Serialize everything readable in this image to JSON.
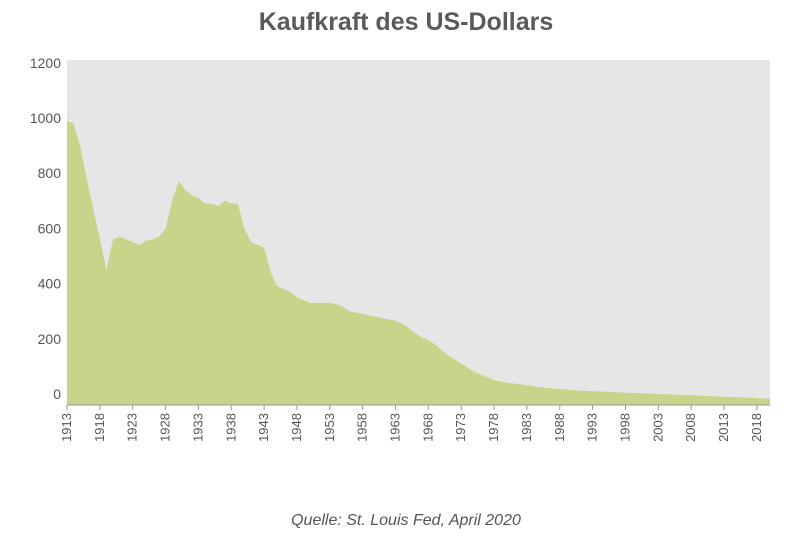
{
  "title": "Kaufkraft des US-Dollars",
  "source": "Quelle: St. Louis Fed, April 2020",
  "chart_data": {
    "type": "area",
    "title": "Kaufkraft des US-Dollars",
    "xlabel": "",
    "ylabel": "",
    "xlim": [
      1913,
      2020
    ],
    "ylim": [
      -40,
      1210
    ],
    "y_ticks": [
      0,
      200,
      400,
      600,
      800,
      1000,
      1200
    ],
    "x_ticks": [
      "1913",
      "1918",
      "1923",
      "1928",
      "1933",
      "1938",
      "1943",
      "1948",
      "1953",
      "1958",
      "1963",
      "1968",
      "1973",
      "1978",
      "1983",
      "1988",
      "1993",
      "1998",
      "2003",
      "2008",
      "2013",
      "2018"
    ],
    "grid": false,
    "fill_color": "#c8d48a",
    "background_color": "#e6e6e6",
    "series": [
      {
        "x": [
          1913,
          1914,
          1915,
          1916,
          1917,
          1918,
          1919,
          1920,
          1921,
          1922,
          1923,
          1924,
          1925,
          1926,
          1927,
          1928,
          1929,
          1930,
          1931,
          1932,
          1933,
          1934,
          1935,
          1936,
          1937,
          1938,
          1939,
          1940,
          1941,
          1942,
          1943,
          1944,
          1945,
          1946,
          1947,
          1948,
          1949,
          1950,
          1951,
          1952,
          1953,
          1954,
          1955,
          1956,
          1957,
          1958,
          1959,
          1960,
          1961,
          1962,
          1963,
          1964,
          1965,
          1966,
          1967,
          1968,
          1969,
          1970,
          1971,
          1972,
          1973,
          1974,
          1975,
          1976,
          1977,
          1978,
          1979,
          1980,
          1981,
          1982,
          1983,
          1984,
          1985,
          1986,
          1987,
          1988,
          1989,
          1990,
          1991,
          1992,
          1993,
          1994,
          1995,
          1996,
          1997,
          1998,
          1999,
          2000,
          2001,
          2002,
          2003,
          2004,
          2005,
          2006,
          2007,
          2008,
          2009,
          2010,
          2011,
          2012,
          2013,
          2014,
          2015,
          2016,
          2017,
          2018,
          2019,
          2020
        ],
        "values": [
          990,
          980,
          900,
          780,
          670,
          560,
          450,
          560,
          570,
          560,
          550,
          540,
          555,
          560,
          570,
          600,
          700,
          770,
          740,
          720,
          710,
          690,
          690,
          680,
          700,
          690,
          690,
          600,
          550,
          540,
          530,
          440,
          390,
          380,
          370,
          350,
          340,
          330,
          330,
          330,
          330,
          325,
          315,
          300,
          295,
          290,
          285,
          280,
          275,
          270,
          265,
          255,
          240,
          220,
          205,
          195,
          180,
          160,
          140,
          125,
          110,
          95,
          80,
          70,
          60,
          50,
          45,
          40,
          38,
          35,
          32,
          28,
          25,
          22,
          20,
          18,
          16,
          14,
          12,
          11,
          10,
          9,
          8,
          7,
          6,
          5,
          4,
          3,
          2,
          1,
          0,
          -1,
          -2,
          -3,
          -4,
          -5,
          -6,
          -7,
          -8,
          -9,
          -10,
          -11,
          -12,
          -13,
          -14,
          -15,
          -16,
          -17
        ]
      }
    ]
  }
}
